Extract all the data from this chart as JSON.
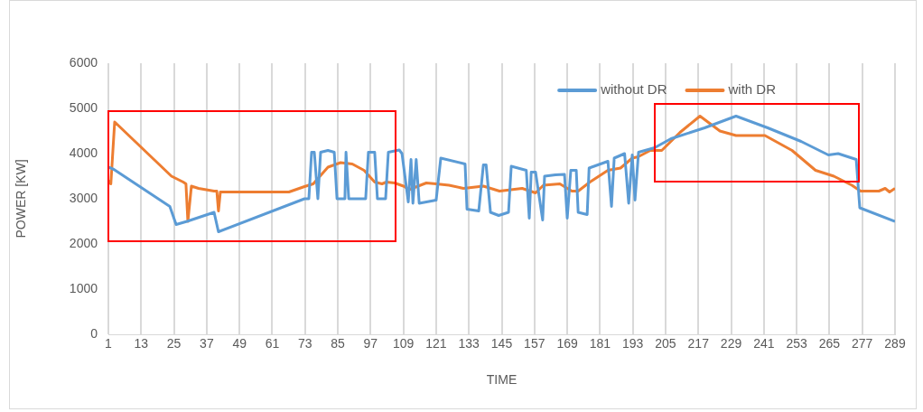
{
  "chart_data": {
    "type": "line",
    "xlabel": "TIME",
    "ylabel": "POWER [KW]",
    "xlim": [
      1,
      289
    ],
    "xticks": [
      1,
      13,
      25,
      37,
      49,
      61,
      73,
      85,
      97,
      109,
      121,
      133,
      145,
      157,
      169,
      181,
      193,
      205,
      217,
      229,
      241,
      253,
      265,
      277,
      289
    ],
    "ylim": [
      0,
      6000
    ],
    "yticks": [
      0,
      1000,
      2000,
      3000,
      4000,
      5000,
      6000
    ],
    "grid": "x",
    "legend": "top right",
    "marker": "none",
    "line_style": "solid",
    "series": [
      {
        "name": "without DR",
        "color": "#5b9bd5",
        "x": [
          1,
          3,
          23.5,
          25.8,
          29.8,
          39.7,
          41.3,
          72.8,
          74.4,
          75.4,
          76.4,
          77.7,
          78.7,
          81.4,
          83.7,
          84.7,
          87.6,
          88,
          89,
          95.2,
          96.2,
          98.5,
          99.5,
          102.5,
          103.5,
          107.5,
          108.5,
          110.8,
          111.8,
          112.5,
          113.7,
          114.8,
          121,
          122.7,
          131.6,
          132.3,
          136.6,
          138.3,
          139.3,
          140.9,
          143.9,
          147.5,
          148.5,
          154,
          155.1,
          155.8,
          157.4,
          160,
          160.7,
          164.7,
          168,
          169,
          170.3,
          172.3,
          173,
          176.3,
          177,
          183.9,
          185.2,
          186.2,
          190,
          191.5,
          192.8,
          193.8,
          195.1,
          201,
          207,
          219.3,
          230.8,
          242.4,
          254.6,
          264.6,
          268.2,
          274.8,
          276.1,
          289
        ],
        "values": [
          3700,
          3650,
          2830,
          2430,
          2500,
          2700,
          2270,
          3000,
          3000,
          4030,
          4030,
          3000,
          4030,
          4070,
          4030,
          3000,
          3000,
          4030,
          3000,
          3000,
          4030,
          4030,
          3000,
          3000,
          4030,
          4080,
          4000,
          2930,
          3870,
          2900,
          3870,
          2900,
          2970,
          3900,
          3770,
          2770,
          2730,
          3750,
          3750,
          2700,
          2630,
          2700,
          3720,
          3630,
          2570,
          3590,
          3590,
          2530,
          3500,
          3530,
          3540,
          2570,
          3630,
          3630,
          2700,
          2650,
          3680,
          3830,
          2830,
          3900,
          4000,
          2900,
          3970,
          2970,
          4030,
          4130,
          4330,
          4570,
          4830,
          4570,
          4270,
          3970,
          4000,
          3870,
          2800,
          2500
        ]
      },
      {
        "name": "with DR",
        "color": "#ed7d31",
        "x": [
          1,
          1.9,
          3.3,
          24.1,
          28.4,
          29.4,
          30.1,
          31.4,
          34,
          39.7,
          40.7,
          41.3,
          42,
          67.1,
          72.8,
          76,
          81.4,
          86,
          90.3,
          94.6,
          98.5,
          101.2,
          102.8,
          105.8,
          109.5,
          111,
          117.4,
          121,
          125.7,
          131,
          138.3,
          144.2,
          152.5,
          157.4,
          160.3,
          166.3,
          170.7,
          173,
          177.3,
          183.9,
          188.5,
          192.8,
          195,
          199.4,
          203.6,
          210.3,
          217.6,
          224.9,
          230.8,
          241.4,
          251.3,
          259.9,
          266.6,
          273.2,
          276.4,
          283.1,
          285.4,
          287,
          289
        ],
        "values": [
          3400,
          3330,
          4700,
          3500,
          3370,
          3330,
          2500,
          3280,
          3230,
          3170,
          3170,
          2730,
          3150,
          3150,
          3270,
          3330,
          3700,
          3800,
          3770,
          3630,
          3370,
          3330,
          3370,
          3350,
          3270,
          3200,
          3350,
          3330,
          3300,
          3230,
          3280,
          3170,
          3230,
          3130,
          3300,
          3330,
          3170,
          3170,
          3370,
          3630,
          3680,
          3900,
          3930,
          4070,
          4070,
          4470,
          4830,
          4500,
          4400,
          4400,
          4070,
          3630,
          3500,
          3300,
          3170,
          3170,
          3230,
          3150,
          3230
        ]
      }
    ]
  }
}
